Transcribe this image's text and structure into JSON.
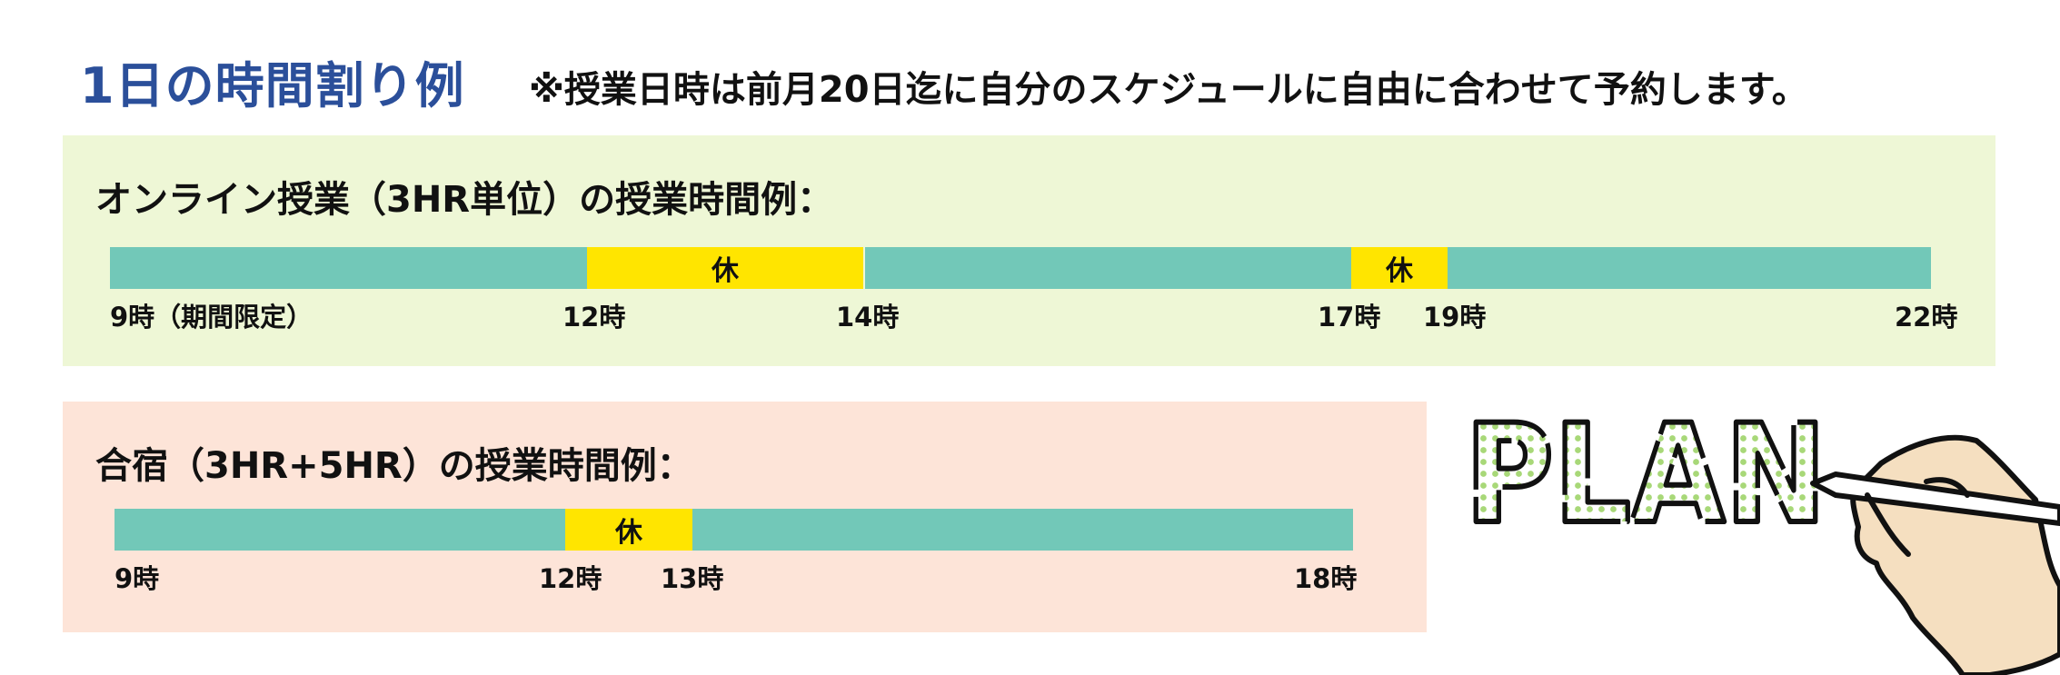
{
  "title": "1日の時間割り例",
  "note": "※授業日時は前月20日迄に自分のスケジュールに自由に合わせて予約します。",
  "online": {
    "heading": "オンライン授業（3HR単位）の授業時間例：",
    "segments": [
      {
        "type": "class",
        "start": 9,
        "end": 12,
        "label": ""
      },
      {
        "type": "break",
        "start": 12,
        "end": 14,
        "label": "休"
      },
      {
        "type": "class",
        "start": 14,
        "end": 17,
        "label": ""
      },
      {
        "type": "break",
        "start": 17,
        "end": 19,
        "label": "休"
      },
      {
        "type": "class",
        "start": 19,
        "end": 22,
        "label": ""
      }
    ],
    "time_labels": [
      "9時（期間限定）",
      "12時",
      "14時",
      "17時",
      "19時",
      "22時"
    ]
  },
  "camp": {
    "heading": "合宿（3HR+5HR）の授業時間例：",
    "segments": [
      {
        "type": "class",
        "start": 9,
        "end": 12,
        "label": ""
      },
      {
        "type": "break",
        "start": 12,
        "end": 13,
        "label": "休"
      },
      {
        "type": "class",
        "start": 13,
        "end": 18,
        "label": ""
      }
    ],
    "time_labels": [
      "9時",
      "12時",
      "13時",
      "18時"
    ]
  },
  "illustration": {
    "text": "PLAN"
  },
  "colors": {
    "title": "#2b4f9a",
    "class": "#72c8b8",
    "break": "#ffe500",
    "online_bg": "#eef7d6",
    "camp_bg": "#fde4d8"
  }
}
